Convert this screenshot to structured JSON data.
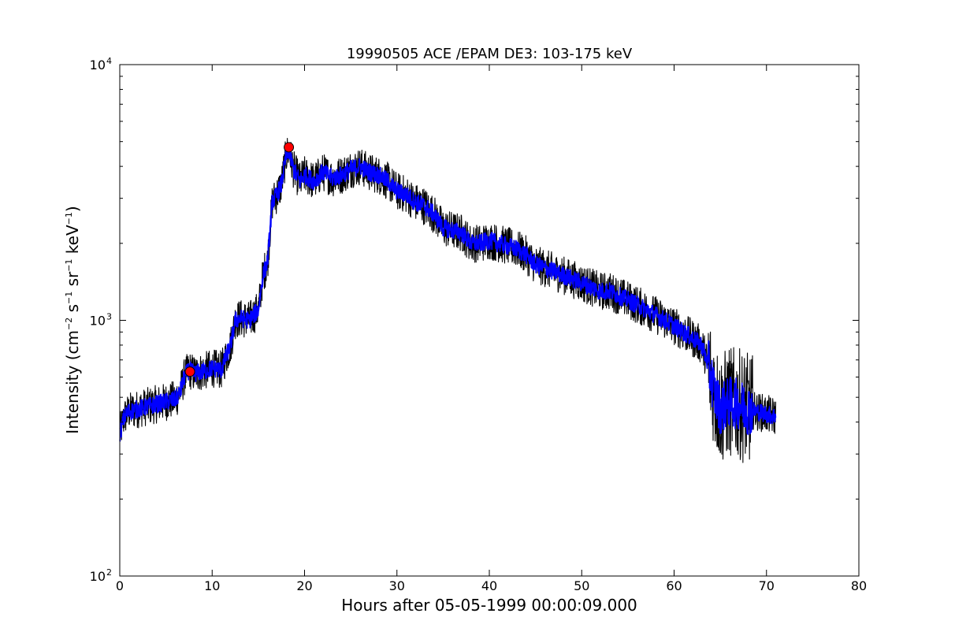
{
  "chart_data": {
    "type": "line",
    "title": "19990505 ACE /EPAM DE3: 103-175 keV",
    "xlabel": "Hours after 05-05-1999 00:00:09.000",
    "ylabel": {
      "base": "Intensity (cm",
      "p1": "−2",
      "s": " s",
      "p2": "−1",
      "sr": " sr",
      "p3": "−1",
      "kev": " keV",
      "p4": "−1",
      "end": ")"
    },
    "xlim": [
      0,
      80
    ],
    "ylim": [
      100,
      10000
    ],
    "yscale": "log",
    "grid": false,
    "x_ticks": [
      0,
      10,
      20,
      30,
      40,
      50,
      60,
      70,
      80
    ],
    "x_tick_labels": [
      "0",
      "10",
      "20",
      "30",
      "40",
      "50",
      "60",
      "70",
      "80"
    ],
    "y_ticks": [
      {
        "value": 100,
        "base": "10",
        "exp": "2"
      },
      {
        "value": 1000,
        "base": "10",
        "exp": "3"
      },
      {
        "value": 10000,
        "base": "10",
        "exp": "4"
      }
    ],
    "series": [
      {
        "role": "noisy-envelope",
        "color": "#000000",
        "x": [
          0,
          0.5,
          1,
          2,
          3,
          4,
          5,
          6,
          6.5,
          7,
          7.5,
          8,
          9,
          10,
          11,
          11.5,
          12,
          12.5,
          13,
          14,
          15,
          15.5,
          16,
          16.5,
          17,
          17.5,
          18,
          18.3,
          18.8,
          19.5,
          20,
          21,
          22,
          23,
          24,
          25,
          26,
          27,
          28,
          29,
          30,
          31,
          32,
          33,
          34,
          35,
          36,
          37,
          38,
          39,
          40,
          41,
          42,
          43,
          44,
          45,
          46,
          47,
          48,
          49,
          50,
          51,
          52,
          53,
          54,
          55,
          56,
          57,
          58,
          59,
          60,
          61,
          62,
          63,
          63.8,
          64.5,
          65,
          66,
          67,
          68,
          69,
          70,
          71
        ],
        "y": [
          360,
          420,
          440,
          450,
          460,
          470,
          480,
          490,
          520,
          600,
          640,
          620,
          630,
          650,
          640,
          720,
          800,
          1000,
          1020,
          1000,
          1100,
          1500,
          1700,
          2900,
          3100,
          3400,
          4400,
          4600,
          3900,
          3500,
          3700,
          3500,
          3800,
          3600,
          3700,
          3900,
          4000,
          3800,
          3700,
          3500,
          3200,
          3100,
          2900,
          2800,
          2600,
          2300,
          2250,
          2200,
          2000,
          2000,
          2050,
          2000,
          1950,
          1900,
          1800,
          1650,
          1600,
          1550,
          1500,
          1450,
          1400,
          1350,
          1300,
          1300,
          1250,
          1200,
          1150,
          1100,
          1050,
          1000,
          950,
          900,
          850,
          800,
          650,
          500,
          450,
          480,
          470,
          450,
          440,
          430,
          420
        ]
      },
      {
        "role": "smoothed-trace",
        "color": "#0000ff",
        "x": [
          0,
          0.5,
          1,
          2,
          3,
          4,
          5,
          6,
          6.5,
          7,
          7.5,
          8,
          9,
          10,
          11,
          11.5,
          12,
          12.5,
          13,
          14,
          15,
          15.5,
          16,
          16.5,
          17,
          17.5,
          18,
          18.3,
          18.8,
          19.5,
          20,
          21,
          22,
          23,
          24,
          25,
          26,
          27,
          28,
          29,
          30,
          31,
          32,
          33,
          34,
          35,
          36,
          37,
          38,
          39,
          40,
          41,
          42,
          43,
          44,
          45,
          46,
          47,
          48,
          49,
          50,
          51,
          52,
          53,
          54,
          55,
          56,
          57,
          58,
          59,
          60,
          61,
          62,
          63,
          63.8,
          64.5,
          65,
          66,
          67,
          68,
          69,
          70,
          71
        ],
        "y": [
          360,
          420,
          440,
          450,
          460,
          470,
          480,
          490,
          520,
          600,
          640,
          620,
          630,
          650,
          640,
          720,
          800,
          1000,
          1020,
          1000,
          1100,
          1500,
          1700,
          2900,
          3100,
          3400,
          4400,
          4600,
          3900,
          3500,
          3700,
          3500,
          3800,
          3600,
          3700,
          3900,
          4000,
          3800,
          3700,
          3500,
          3200,
          3100,
          2900,
          2800,
          2600,
          2300,
          2250,
          2200,
          2000,
          2000,
          2050,
          2000,
          1950,
          1900,
          1800,
          1650,
          1600,
          1550,
          1500,
          1450,
          1400,
          1350,
          1300,
          1300,
          1250,
          1200,
          1150,
          1100,
          1050,
          1000,
          950,
          900,
          850,
          800,
          650,
          500,
          450,
          480,
          470,
          450,
          440,
          430,
          420
        ]
      }
    ],
    "markers": [
      {
        "x": 7.6,
        "y": 630,
        "color": "#ff0000",
        "shape": "circle"
      },
      {
        "x": 18.3,
        "y": 4750,
        "color": "#ff0000",
        "shape": "circle"
      }
    ]
  }
}
